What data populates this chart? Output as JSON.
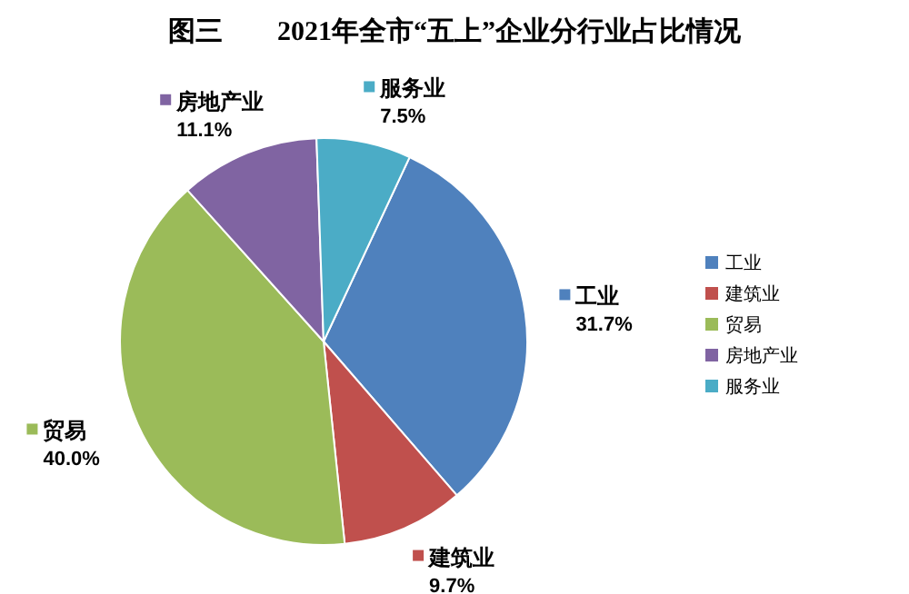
{
  "chart_data": {
    "type": "pie",
    "title": "图三　　2021年全市“五上”企业分行业占比情况",
    "categories": [
      "工业",
      "建筑业",
      "贸易",
      "房地产业",
      "服务业"
    ],
    "values": [
      31.7,
      9.7,
      40.0,
      11.1,
      7.5
    ],
    "colors": [
      "#4f81bd",
      "#c0504d",
      "#9bbb59",
      "#8064a2",
      "#4bacc6"
    ],
    "value_labels": [
      "31.7%",
      "9.7%",
      "40.0%",
      "11.1%",
      "7.5%"
    ],
    "legend": "right"
  }
}
